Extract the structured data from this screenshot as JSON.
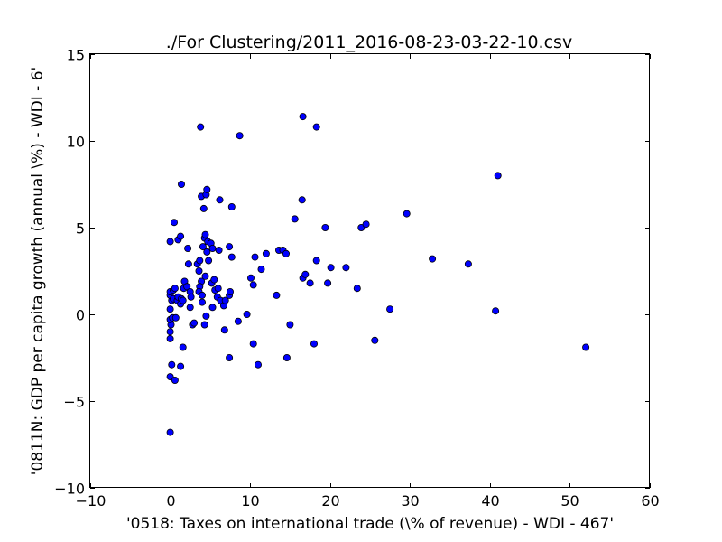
{
  "chart_data": {
    "type": "scatter",
    "title": "./For Clustering/2011_2016-08-23-03-22-10.csv",
    "xlabel": "'0518: Taxes on international trade  (\\% of revenue) - WDI - 467'",
    "ylabel": "'0811N: GDP per capita growth  (annual \\%) - WDI - 6'",
    "xlim": [
      -10,
      60
    ],
    "ylim": [
      -10,
      15
    ],
    "xticks": [
      -10,
      0,
      10,
      20,
      30,
      40,
      50,
      60
    ],
    "yticks": [
      -10,
      -5,
      0,
      5,
      10,
      15
    ],
    "xtick_labels": [
      "−10",
      "0",
      "10",
      "20",
      "30",
      "40",
      "50",
      "60"
    ],
    "ytick_labels": [
      "−10",
      "−5",
      "0",
      "5",
      "10",
      "15"
    ],
    "grid": false,
    "marker_color": "#0000ff",
    "series": [
      {
        "points": [
          [
            0.0,
            -6.8
          ],
          [
            0.0,
            -3.6
          ],
          [
            0.2,
            -2.9
          ],
          [
            0.6,
            -3.8
          ],
          [
            0.0,
            -1.4
          ],
          [
            0.0,
            -1.0
          ],
          [
            0.1,
            -0.6
          ],
          [
            0.0,
            -0.3
          ],
          [
            0.3,
            -0.2
          ],
          [
            0.7,
            -0.2
          ],
          [
            0.0,
            0.3
          ],
          [
            0.2,
            0.8
          ],
          [
            0.0,
            1.1
          ],
          [
            0.0,
            1.3
          ],
          [
            0.4,
            1.4
          ],
          [
            0.6,
            1.5
          ],
          [
            0.4,
            0.9
          ],
          [
            0.9,
            0.8
          ],
          [
            1.0,
            1.0
          ],
          [
            1.4,
            0.9
          ],
          [
            1.3,
            0.6
          ],
          [
            1.6,
            0.8
          ],
          [
            1.7,
            1.5
          ],
          [
            1.8,
            1.9
          ],
          [
            2.1,
            1.6
          ],
          [
            2.5,
            1.3
          ],
          [
            2.6,
            1.0
          ],
          [
            2.5,
            0.4
          ],
          [
            2.8,
            -0.6
          ],
          [
            3.0,
            -0.5
          ],
          [
            1.6,
            -1.9
          ],
          [
            1.3,
            -3.0
          ],
          [
            0.0,
            4.2
          ],
          [
            0.5,
            5.3
          ],
          [
            1.0,
            4.3
          ],
          [
            1.3,
            4.5
          ],
          [
            1.4,
            7.5
          ],
          [
            2.2,
            3.8
          ],
          [
            2.3,
            2.9
          ],
          [
            3.4,
            2.9
          ],
          [
            3.6,
            2.5
          ],
          [
            3.7,
            3.1
          ],
          [
            3.9,
            1.9
          ],
          [
            3.7,
            1.6
          ],
          [
            3.6,
            1.3
          ],
          [
            4.0,
            1.1
          ],
          [
            4.0,
            0.7
          ],
          [
            4.3,
            -0.6
          ],
          [
            4.5,
            -0.1
          ],
          [
            4.4,
            2.2
          ],
          [
            4.1,
            3.9
          ],
          [
            4.3,
            4.4
          ],
          [
            4.4,
            4.6
          ],
          [
            4.6,
            3.6
          ],
          [
            4.8,
            3.1
          ],
          [
            4.7,
            4.2
          ],
          [
            5.1,
            4.1
          ],
          [
            5.3,
            3.8
          ],
          [
            5.2,
            1.8
          ],
          [
            5.5,
            2.0
          ],
          [
            5.6,
            1.4
          ],
          [
            5.3,
            0.4
          ],
          [
            5.9,
            1.0
          ],
          [
            6.0,
            1.5
          ],
          [
            6.3,
            0.8
          ],
          [
            6.7,
            0.5
          ],
          [
            6.1,
            3.7
          ],
          [
            6.9,
            0.8
          ],
          [
            6.8,
            -0.9
          ],
          [
            7.4,
            1.1
          ],
          [
            7.5,
            1.3
          ],
          [
            7.4,
            3.9
          ],
          [
            7.7,
            3.3
          ],
          [
            7.4,
            -2.5
          ],
          [
            7.7,
            6.2
          ],
          [
            3.9,
            6.8
          ],
          [
            4.2,
            6.1
          ],
          [
            4.5,
            6.9
          ],
          [
            4.6,
            7.2
          ],
          [
            6.2,
            6.6
          ],
          [
            3.8,
            10.8
          ],
          [
            8.7,
            10.3
          ],
          [
            8.5,
            -0.4
          ],
          [
            9.6,
            0.0
          ],
          [
            10.1,
            2.1
          ],
          [
            10.4,
            1.7
          ],
          [
            10.6,
            3.3
          ],
          [
            10.4,
            -1.7
          ],
          [
            11.0,
            -2.9
          ],
          [
            11.4,
            2.6
          ],
          [
            12.0,
            3.5
          ],
          [
            13.3,
            1.1
          ],
          [
            13.6,
            3.7
          ],
          [
            14.1,
            3.7
          ],
          [
            14.5,
            3.5
          ],
          [
            14.6,
            -2.5
          ],
          [
            15.0,
            -0.6
          ],
          [
            15.6,
            5.5
          ],
          [
            16.5,
            6.6
          ],
          [
            16.6,
            2.1
          ],
          [
            16.9,
            2.3
          ],
          [
            17.5,
            1.8
          ],
          [
            18.0,
            -1.7
          ],
          [
            18.3,
            3.1
          ],
          [
            16.6,
            11.4
          ],
          [
            18.3,
            10.8
          ],
          [
            19.4,
            5.0
          ],
          [
            19.7,
            1.8
          ],
          [
            20.1,
            2.7
          ],
          [
            22.0,
            2.7
          ],
          [
            23.4,
            1.5
          ],
          [
            23.9,
            5.0
          ],
          [
            24.5,
            5.2
          ],
          [
            25.6,
            -1.5
          ],
          [
            27.5,
            0.3
          ],
          [
            29.6,
            5.8
          ],
          [
            32.8,
            3.2
          ],
          [
            37.3,
            2.9
          ],
          [
            40.7,
            0.2
          ],
          [
            41.0,
            8.0
          ],
          [
            52.0,
            -1.9
          ]
        ]
      }
    ]
  }
}
